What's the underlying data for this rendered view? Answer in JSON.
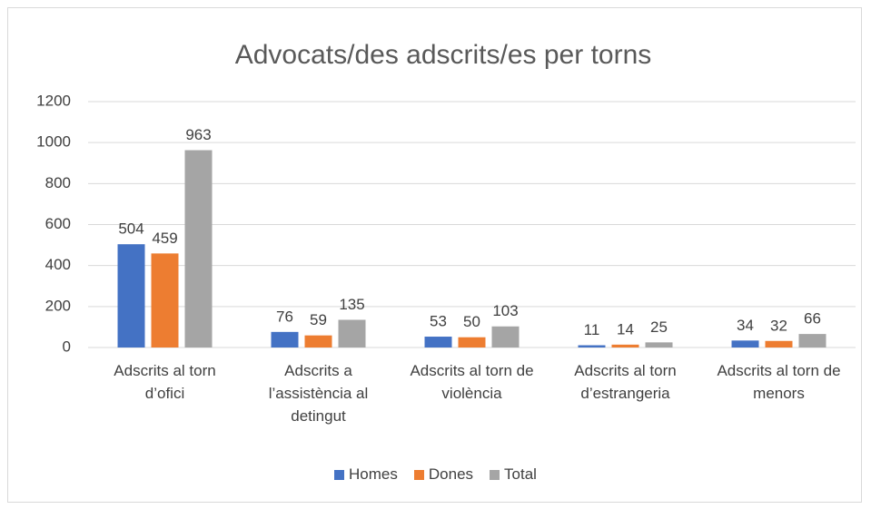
{
  "chart_data": {
    "type": "bar",
    "title": "Advocats/des adscrits/es per torns",
    "categories": [
      "Adscrits al torn d’ofici",
      "Adscrits a l’assistència al detingut",
      "Adscrits al torn de violència",
      "Adscrits al torn d’estrangeria",
      "Adscrits al torn de menors"
    ],
    "series": [
      {
        "name": "Homes",
        "color": "#4472c4",
        "values": [
          504,
          76,
          53,
          11,
          34
        ]
      },
      {
        "name": "Dones",
        "color": "#ed7d31",
        "values": [
          459,
          59,
          50,
          14,
          32
        ]
      },
      {
        "name": "Total",
        "color": "#a5a5a5",
        "values": [
          963,
          135,
          103,
          25,
          66
        ]
      }
    ],
    "ylim": [
      0,
      1200
    ],
    "yticks": [
      0,
      200,
      400,
      600,
      800,
      1000,
      1200
    ],
    "grid": true,
    "legend": "bottom"
  }
}
